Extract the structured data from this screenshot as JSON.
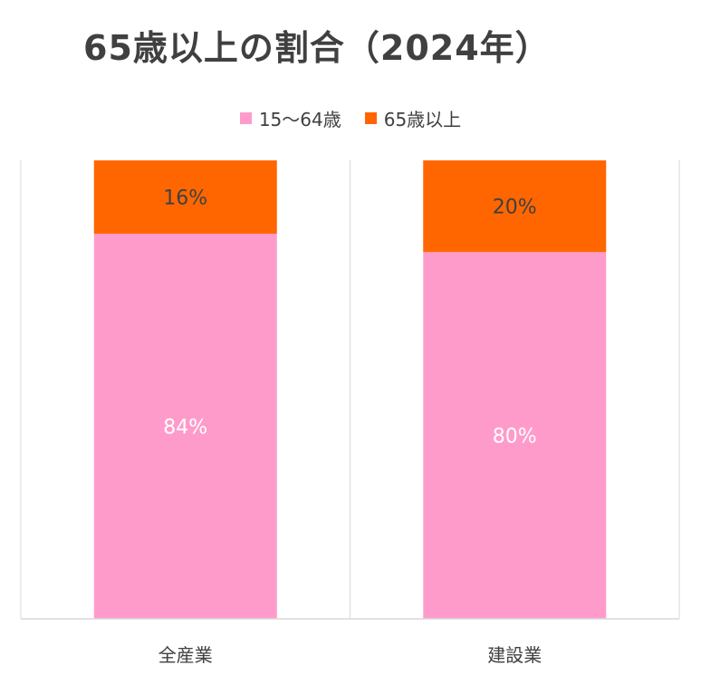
{
  "chart_data": {
    "type": "bar",
    "stacked": true,
    "percent_stacked": true,
    "title": "65歳以上の割合（2024年）",
    "categories": [
      "全産業",
      "建設業"
    ],
    "series": [
      {
        "name": "15～64歳",
        "color": "#FF9BCB",
        "values": [
          84,
          80
        ],
        "data_labels": [
          "84%",
          "80%"
        ],
        "label_color": "#ffffff"
      },
      {
        "name": "65歳以上",
        "color": "#FF6600",
        "values": [
          16,
          20
        ],
        "data_labels": [
          "16%",
          "20%"
        ],
        "label_color": "#404040"
      }
    ],
    "ylim": [
      0,
      100
    ],
    "legend": "top-center",
    "grid": "vertical-separators"
  }
}
